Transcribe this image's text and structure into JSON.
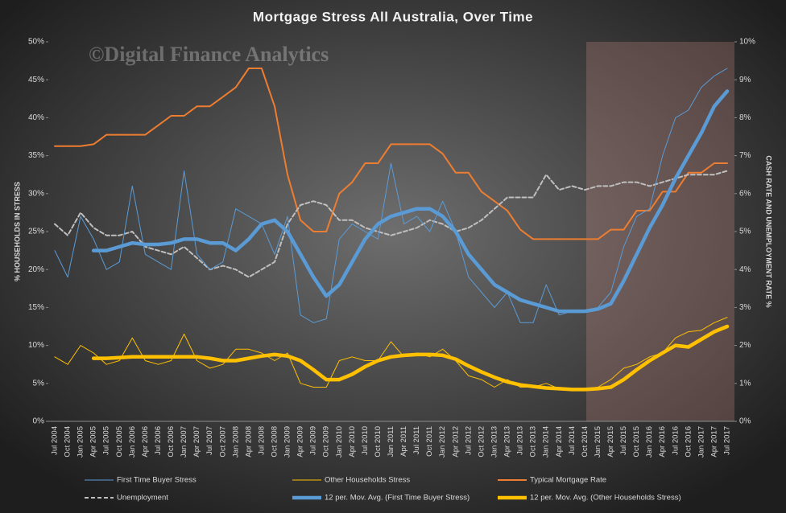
{
  "chart_data": {
    "type": "line",
    "title": "Mortgage  Stress  All Australia,  Over Time",
    "watermark": "©Digital Finance Analytics",
    "y_label": "% HOUSEHOLDS IN STRESS",
    "y2_label": "CASH RATE AND UNEMPLOYMENT RATE %",
    "categories": [
      "Jul 2004",
      "Oct 2004",
      "Jan 2005",
      "Apr 2005",
      "Jul 2005",
      "Oct 2005",
      "Jan 2006",
      "Apr 2006",
      "Jul 2006",
      "Oct 2006",
      "Jan 2007",
      "Apr 2007",
      "Jul 2007",
      "Oct 2007",
      "Jan 2008",
      "Apr 2008",
      "Jul 2008",
      "Oct 2008",
      "Jan 2009",
      "Apr 2009",
      "Jul 2009",
      "Oct 2009",
      "Jan 2010",
      "Apr 2010",
      "Jul 2010",
      "Oct 2010",
      "Jan 2011",
      "Apr 2011",
      "Jul 2011",
      "Oct 2011",
      "Jan 2012",
      "Apr 2012",
      "Jul 2012",
      "Oct 2012",
      "Jan 2013",
      "Apr 2013",
      "Jul 2013",
      "Oct 2013",
      "Jan 2014",
      "Apr 2014",
      "Jul 2014",
      "Oct 2014",
      "Jan 2015",
      "Apr 2015",
      "Jul 2015",
      "Oct 2015",
      "Jan 2016",
      "Apr 2016",
      "Jul 2016",
      "Oct 2016",
      "Jan 2017",
      "Apr 2017",
      "Jul 2017"
    ],
    "ylim": [
      0,
      50
    ],
    "yticks": [
      {
        "value": 0,
        "label": "0%"
      },
      {
        "value": 5,
        "label": "5%"
      },
      {
        "value": 10,
        "label": "10%"
      },
      {
        "value": 15,
        "label": "15%"
      },
      {
        "value": 20,
        "label": "20%"
      },
      {
        "value": 25,
        "label": "25%"
      },
      {
        "value": 30,
        "label": "30%"
      },
      {
        "value": 35,
        "label": "35%"
      },
      {
        "value": 40,
        "label": "40%"
      },
      {
        "value": 45,
        "label": "45%"
      },
      {
        "value": 50,
        "label": "50%"
      }
    ],
    "y2lim": [
      0,
      10
    ],
    "y2ticks": [
      {
        "value": 0,
        "label": "0%"
      },
      {
        "value": 1,
        "label": "1%"
      },
      {
        "value": 2,
        "label": "2%"
      },
      {
        "value": 3,
        "label": "3%"
      },
      {
        "value": 4,
        "label": "4%"
      },
      {
        "value": 5,
        "label": "5%"
      },
      {
        "value": 6,
        "label": "6%"
      },
      {
        "value": 7,
        "label": "7%"
      },
      {
        "value": 8,
        "label": "8%"
      },
      {
        "value": 9,
        "label": "9%"
      },
      {
        "value": 10,
        "label": "10%"
      }
    ],
    "series": [
      {
        "name": "First Time Buyer Stress",
        "color": "#5b9bd5",
        "style": "thin",
        "values": [
          22.5,
          19,
          27,
          24,
          20,
          21,
          31,
          22,
          21,
          20,
          33,
          22,
          20,
          21,
          28,
          27,
          26,
          22,
          27,
          14,
          13,
          13.5,
          24,
          26,
          25,
          24,
          34,
          26,
          27,
          25,
          29,
          25,
          19,
          17,
          15,
          17,
          13,
          13,
          18,
          14,
          14.5,
          14.5,
          15,
          17,
          23,
          27,
          28,
          35,
          40,
          41,
          44,
          45.5,
          46.5
        ]
      },
      {
        "name": "Other Households Stress",
        "color": "#ffc000",
        "style": "thin",
        "values": [
          8.5,
          7.5,
          10,
          9,
          7.5,
          8,
          11,
          8,
          7.5,
          8,
          11.5,
          8,
          7,
          7.5,
          9.5,
          9.5,
          9,
          8,
          9,
          5,
          4.5,
          4.5,
          8,
          8.5,
          8,
          8,
          10.5,
          8.5,
          9,
          8.5,
          9.5,
          8,
          6,
          5.5,
          4.5,
          5.5,
          4.5,
          4.5,
          5,
          4.3,
          4.3,
          4.3,
          4.5,
          5.5,
          7,
          7.5,
          8.5,
          9,
          11,
          11.8,
          12,
          13,
          13.7
        ]
      },
      {
        "name": "Typical Mortgage Rate",
        "color": "#ed7d31",
        "style": "medium",
        "axis": "y2",
        "values": [
          7.25,
          7.25,
          7.25,
          7.3,
          7.55,
          7.55,
          7.55,
          7.55,
          7.8,
          8.05,
          8.05,
          8.3,
          8.3,
          8.55,
          8.8,
          9.3,
          9.3,
          8.3,
          6.5,
          5.3,
          5,
          5,
          6,
          6.3,
          6.8,
          6.8,
          7.3,
          7.3,
          7.3,
          7.3,
          7.05,
          6.55,
          6.55,
          6.05,
          5.8,
          5.55,
          5.05,
          4.8,
          4.8,
          4.8,
          4.8,
          4.8,
          4.8,
          5.05,
          5.05,
          5.55,
          5.55,
          6.05,
          6.05,
          6.55,
          6.55,
          6.8,
          6.8
        ]
      },
      {
        "name": "Unemployment",
        "color": "#bfbfbf",
        "style": "dashed",
        "axis": "y2",
        "values": [
          5.2,
          4.9,
          5.5,
          5.1,
          4.9,
          4.9,
          5,
          4.6,
          4.5,
          4.4,
          4.6,
          4.3,
          4,
          4.1,
          4,
          3.8,
          4,
          4.2,
          5.2,
          5.7,
          5.8,
          5.7,
          5.3,
          5.3,
          5.1,
          5,
          4.9,
          5,
          5.1,
          5.3,
          5.2,
          5,
          5.1,
          5.3,
          5.6,
          5.9,
          5.9,
          5.9,
          6.5,
          6.1,
          6.2,
          6.1,
          6.2,
          6.2,
          6.3,
          6.3,
          6.2,
          6.3,
          6.4,
          6.5,
          6.5,
          6.5,
          6.6
        ]
      },
      {
        "name": "12 per. Mov. Avg. (First Time Buyer Stress)",
        "color": "#5b9bd5",
        "style": "thick",
        "values": [
          null,
          null,
          null,
          22.5,
          22.5,
          23,
          23.5,
          23.3,
          23.3,
          23.5,
          24,
          24,
          23.5,
          23.5,
          22.5,
          24,
          26,
          26.5,
          25,
          22,
          19,
          16.5,
          18,
          21,
          24,
          26,
          27,
          27.5,
          28,
          28,
          27,
          25,
          22,
          20,
          18,
          17,
          16,
          15.5,
          15,
          14.5,
          14.5,
          14.5,
          14.8,
          15.5,
          18.5,
          22,
          25.5,
          28.5,
          32,
          35,
          38,
          41.5,
          43.5
        ]
      },
      {
        "name": "12 per. Mov. Avg. (Other Households Stress)",
        "color": "#ffc000",
        "style": "thick",
        "values": [
          null,
          null,
          null,
          8.3,
          8.3,
          8.4,
          8.5,
          8.5,
          8.5,
          8.5,
          8.5,
          8.5,
          8.3,
          8,
          8,
          8.3,
          8.6,
          8.8,
          8.6,
          8,
          6.8,
          5.5,
          5.5,
          6.2,
          7.2,
          8,
          8.5,
          8.7,
          8.8,
          8.8,
          8.7,
          8.2,
          7.3,
          6.5,
          5.8,
          5.2,
          4.8,
          4.6,
          4.4,
          4.3,
          4.2,
          4.2,
          4.3,
          4.5,
          5.5,
          6.8,
          8,
          9,
          10,
          9.8,
          10.8,
          11.8,
          12.5
        ]
      }
    ]
  }
}
